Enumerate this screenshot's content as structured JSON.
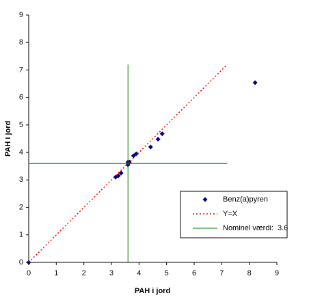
{
  "chart_data": {
    "type": "scatter",
    "xlabel": "PAH i jord",
    "ylabel": "PAH i jord",
    "xlim": [
      0,
      9
    ],
    "ylim": [
      0,
      9
    ],
    "xticks": [
      0,
      1,
      2,
      3,
      4,
      5,
      6,
      7,
      8,
      9
    ],
    "yticks": [
      0,
      1,
      2,
      3,
      4,
      5,
      6,
      7,
      8,
      9
    ],
    "grid": false,
    "legend": "lower right",
    "series": [
      {
        "name": "Benz(a)pyren",
        "color": "#000080",
        "x": [
          0,
          3.15,
          3.25,
          3.35,
          3.6,
          3.6,
          3.65,
          3.8,
          3.9,
          4.42,
          4.69,
          4.84,
          8.21
        ],
        "values": [
          0,
          3.1,
          3.15,
          3.25,
          3.55,
          3.65,
          3.65,
          3.88,
          3.95,
          4.2,
          4.48,
          4.68,
          6.54
        ]
      },
      {
        "name": "Y=X",
        "color": "#ff0000",
        "x": [
          0,
          7.2
        ],
        "values": [
          0,
          7.2
        ]
      },
      {
        "name": "Nominel værdi:",
        "color": "#008000",
        "value": 3.6,
        "extent": [
          0,
          7.2
        ]
      }
    ]
  }
}
